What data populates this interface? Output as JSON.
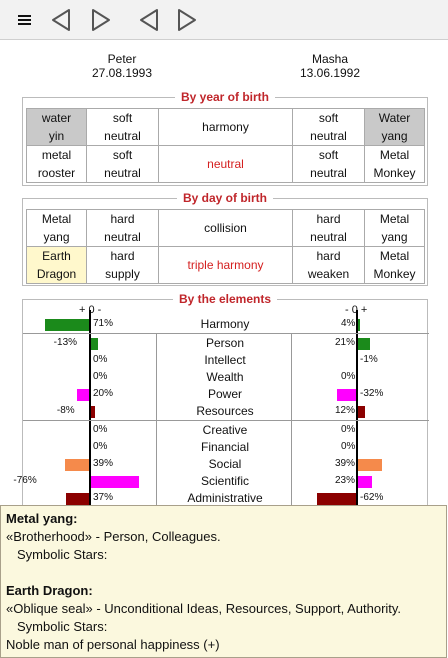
{
  "toolbar": {
    "icons": [
      "menu-icon",
      "back-outline-icon",
      "forward-outline-icon",
      "back-outline-icon",
      "forward-outline-icon"
    ]
  },
  "people": [
    {
      "name": "Peter",
      "date": "27.08.1993"
    },
    {
      "name": "Masha",
      "date": "13.06.1992"
    }
  ],
  "year": {
    "title": "By year of birth",
    "row1": {
      "l1": "water\nyin",
      "l2": "soft\nneutral",
      "center": "harmony",
      "r2": "soft\nneutral",
      "r1": "Water\nyang"
    },
    "row2": {
      "l1": "metal\nrooster",
      "l2": "soft\nneutral",
      "center": "neutral",
      "r2": "soft\nneutral",
      "r1": "Metal\nMonkey"
    }
  },
  "day": {
    "title": "By day of birth",
    "row1": {
      "l1": "Metal\nyang",
      "l2": "hard\nneutral",
      "center": "collision",
      "r2": "hard\nneutral",
      "r1": "Metal\nyang"
    },
    "row2": {
      "l1": "Earth\nDragon",
      "l2": "hard\nsupply",
      "center": "triple harmony",
      "r2": "hard\nweaken",
      "r1": "Metal\nMonkey"
    }
  },
  "elements": {
    "title": "By the elements",
    "left_head": "+ 0 -",
    "right_head": "- 0 +",
    "colors": {
      "green": "#1b8a1b",
      "magenta": "#ff00ff",
      "darkred": "#8b0000",
      "orange": "#f58a4b"
    },
    "rows": [
      {
        "label": "Harmony",
        "left_text": "71%",
        "left_val": 71,
        "left_color": "green",
        "right_text": "4%",
        "right_val": 4,
        "right_color": "green"
      },
      {
        "label": "Person",
        "left_text": "-13%",
        "left_val": -13,
        "left_color": "green",
        "right_text": "21%",
        "right_val": 21,
        "right_color": "green"
      },
      {
        "label": "Intellect",
        "left_text": "0%",
        "left_val": 0,
        "left_color": "green",
        "right_text": "-1%",
        "right_val": -1,
        "right_color": "darkred"
      },
      {
        "label": "Wealth",
        "left_text": "0%",
        "left_val": 0,
        "left_color": "green",
        "right_text": "0%",
        "right_val": 0,
        "right_color": "green"
      },
      {
        "label": "Power",
        "left_text": "20%",
        "left_val": 20,
        "left_color": "magenta",
        "right_text": "-32%",
        "right_val": -32,
        "right_color": "magenta"
      },
      {
        "label": "Resources",
        "left_text": "-8%",
        "left_val": -8,
        "left_color": "darkred",
        "right_text": "12%",
        "right_val": 12,
        "right_color": "darkred"
      },
      {
        "label": "Creative",
        "left_text": "0%",
        "left_val": 0,
        "left_color": "green",
        "right_text": "0%",
        "right_val": 0,
        "right_color": "green"
      },
      {
        "label": "Financial",
        "left_text": "0%",
        "left_val": 0,
        "left_color": "green",
        "right_text": "0%",
        "right_val": 0,
        "right_color": "green"
      },
      {
        "label": "Social",
        "left_text": "39%",
        "left_val": 39,
        "left_color": "orange",
        "right_text": "39%",
        "right_val": 39,
        "right_color": "orange"
      },
      {
        "label": "Scientific",
        "left_text": "-76%",
        "left_val": -76,
        "left_color": "magenta",
        "right_text": "23%",
        "right_val": 23,
        "right_color": "magenta"
      },
      {
        "label": "Administrative",
        "left_text": "37%",
        "left_val": 37,
        "left_color": "darkred",
        "right_text": "-62%",
        "right_val": -62,
        "right_color": "darkred"
      }
    ]
  },
  "tooltip": {
    "h1": "Metal yang:",
    "l1": "«Brotherhood» - Person, Colleagues.",
    "l2": "Symbolic Stars:",
    "h2": "Earth Dragon:",
    "l3": "«Oblique seal» - Unconditional Ideas, Resources, Support, Authority.",
    "l4": "Symbolic Stars:",
    "l5": "Noble man of personal happiness (+)"
  }
}
